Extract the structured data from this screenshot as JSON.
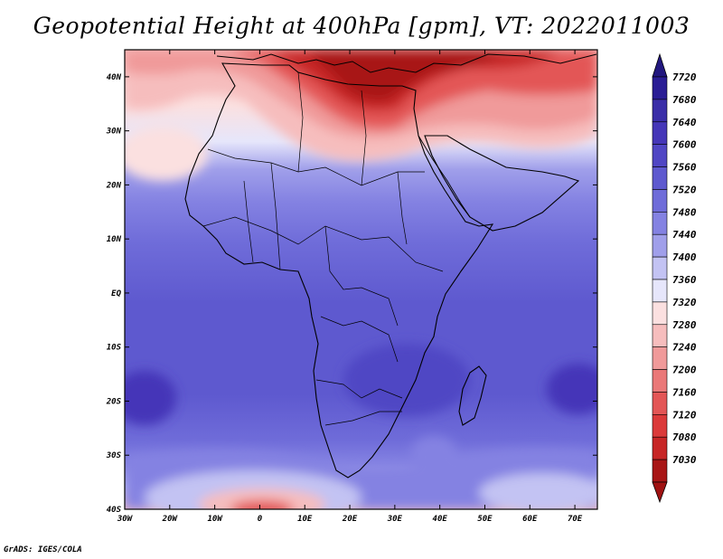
{
  "title": "Geopotential Height at 400hPa [gpm], VT: 2022011003",
  "credit": "GrADS: IGES/COLA",
  "map": {
    "lon_range": [
      -30,
      75
    ],
    "lat_range": [
      -40,
      45
    ],
    "lon_ticks": [
      {
        "lon": -30,
        "label": "30W"
      },
      {
        "lon": -20,
        "label": "20W"
      },
      {
        "lon": -10,
        "label": "10W"
      },
      {
        "lon": 0,
        "label": "0"
      },
      {
        "lon": 10,
        "label": "10E"
      },
      {
        "lon": 20,
        "label": "20E"
      },
      {
        "lon": 30,
        "label": "30E"
      },
      {
        "lon": 40,
        "label": "40E"
      },
      {
        "lon": 50,
        "label": "50E"
      },
      {
        "lon": 60,
        "label": "60E"
      },
      {
        "lon": 70,
        "label": "70E"
      }
    ],
    "lat_ticks": [
      {
        "lat": 40,
        "label": "40N"
      },
      {
        "lat": 30,
        "label": "30N"
      },
      {
        "lat": 20,
        "label": "20N"
      },
      {
        "lat": 10,
        "label": "10N"
      },
      {
        "lat": 0,
        "label": "EQ"
      },
      {
        "lat": -10,
        "label": "10S"
      },
      {
        "lat": -20,
        "label": "20S"
      },
      {
        "lat": -30,
        "label": "30S"
      },
      {
        "lat": -40,
        "label": "40S"
      }
    ]
  },
  "colorbar": {
    "levels": [
      {
        "label": "7720",
        "color": "#2a1d95"
      },
      {
        "label": "7680",
        "color": "#3a2ea8"
      },
      {
        "label": "7640",
        "color": "#4536b8"
      },
      {
        "label": "7600",
        "color": "#5046c4"
      },
      {
        "label": "7560",
        "color": "#5e59cf"
      },
      {
        "label": "7520",
        "color": "#6f6cd9"
      },
      {
        "label": "7480",
        "color": "#8482e2"
      },
      {
        "label": "7440",
        "color": "#a09fea"
      },
      {
        "label": "7400",
        "color": "#c3c3f3"
      },
      {
        "label": "7360",
        "color": "#e6e6fb"
      },
      {
        "label": "7320",
        "color": "#fbe0e0"
      },
      {
        "label": "7280",
        "color": "#f6bdbd"
      },
      {
        "label": "7240",
        "color": "#f09a9a"
      },
      {
        "label": "7200",
        "color": "#ea7878"
      },
      {
        "label": "7160",
        "color": "#e35656"
      },
      {
        "label": "7120",
        "color": "#db3a3a"
      },
      {
        "label": "7080",
        "color": "#c72626"
      },
      {
        "label": "7030",
        "color": "#a81616"
      }
    ],
    "top_arrow_color": "#22177f",
    "bottom_arrow_color": "#a01212"
  }
}
